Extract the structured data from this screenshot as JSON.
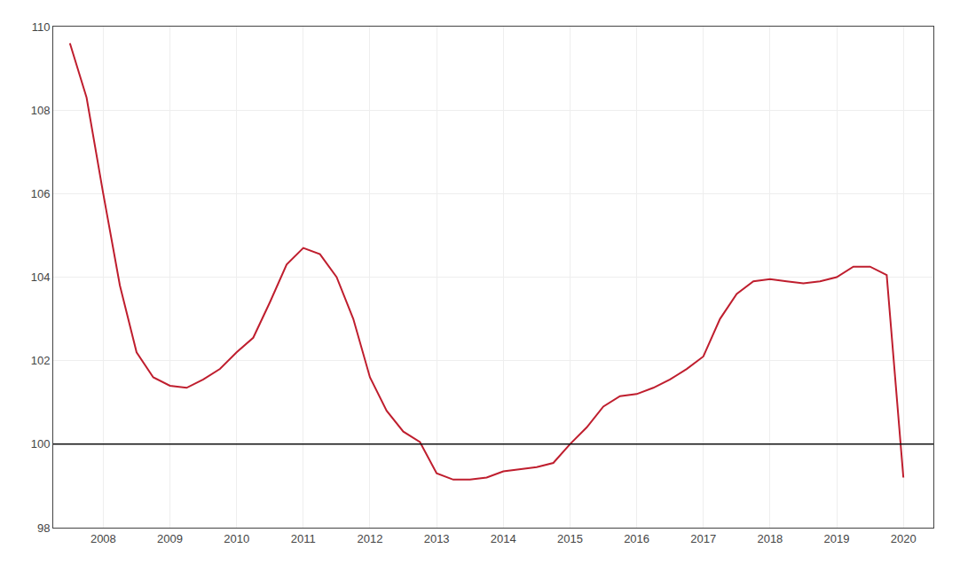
{
  "chart_data": {
    "type": "line",
    "x": [
      2007.5,
      2007.75,
      2008.0,
      2008.25,
      2008.5,
      2008.75,
      2009.0,
      2009.25,
      2009.5,
      2009.75,
      2010.0,
      2010.25,
      2010.5,
      2010.75,
      2011.0,
      2011.25,
      2011.5,
      2011.75,
      2012.0,
      2012.25,
      2012.5,
      2012.75,
      2013.0,
      2013.25,
      2013.5,
      2013.75,
      2014.0,
      2014.25,
      2014.5,
      2014.75,
      2015.0,
      2015.25,
      2015.5,
      2015.75,
      2016.0,
      2016.25,
      2016.5,
      2016.75,
      2017.0,
      2017.25,
      2017.5,
      2017.75,
      2018.0,
      2018.25,
      2018.5,
      2018.75,
      2019.0,
      2019.25,
      2019.5,
      2019.75,
      2020.0
    ],
    "values": [
      109.6,
      108.3,
      106.0,
      103.8,
      102.2,
      101.6,
      101.4,
      101.35,
      101.55,
      101.8,
      102.2,
      102.55,
      103.4,
      104.3,
      104.7,
      104.55,
      104.0,
      103.0,
      101.6,
      100.8,
      100.3,
      100.05,
      99.3,
      99.15,
      99.15,
      99.2,
      99.35,
      99.4,
      99.45,
      99.55,
      100.0,
      100.4,
      100.9,
      101.15,
      101.2,
      101.35,
      101.55,
      101.8,
      102.1,
      103.0,
      103.6,
      103.9,
      103.95,
      103.9,
      103.85,
      103.9,
      104.0,
      104.25,
      104.25,
      104.05,
      99.2
    ],
    "color": "#bf1e2e",
    "reference_line": {
      "y": 100,
      "color": "#111111"
    },
    "xlim": [
      2007.25,
      2020.45
    ],
    "xticks": [
      2008,
      2009,
      2010,
      2011,
      2012,
      2013,
      2014,
      2015,
      2016,
      2017,
      2018,
      2019,
      2020
    ],
    "ylim": [
      98.0,
      110.0
    ],
    "yticks": [
      98,
      100,
      102,
      104,
      106,
      108,
      110
    ],
    "grid": true
  }
}
